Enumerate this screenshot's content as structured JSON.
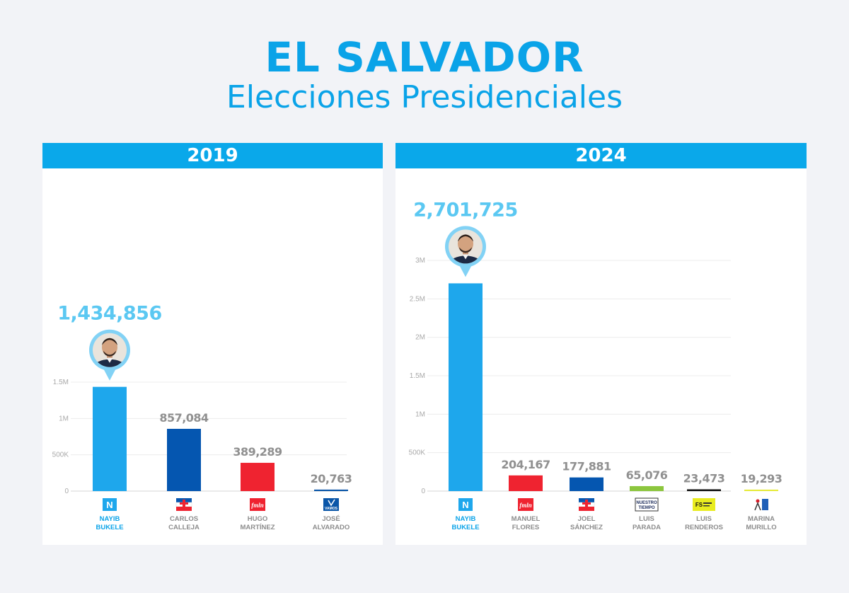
{
  "header": {
    "title": "EL SALVADOR",
    "subtitle": "Elecciones Presidenciales"
  },
  "colors": {
    "accent": "#0aa3e8",
    "header_bar": "#0aa8ea",
    "winner_label": "#5bc8f2"
  },
  "chart_data": [
    {
      "type": "bar",
      "title": "2019",
      "ylim": [
        0,
        1500000
      ],
      "yticks": [
        0,
        500000,
        1000000,
        1500000
      ],
      "ytick_labels": [
        "0",
        "500K",
        "1M",
        "1.5M"
      ],
      "grid": true,
      "categories": [
        {
          "line1": "NAYIB",
          "line2": "BUKELE",
          "winner": true,
          "logo": "N",
          "logo_icon": "nuevas-ideas-logo"
        },
        {
          "line1": "CARLOS",
          "line2": "CALLEJA",
          "winner": false,
          "logo": "",
          "logo_icon": "arena-logo"
        },
        {
          "line1": "HUGO",
          "line2": "MARTÍNEZ",
          "winner": false,
          "logo": "fmln",
          "logo_icon": "fmln-logo"
        },
        {
          "line1": "JOSÉ",
          "line2": "ALVARADO",
          "winner": false,
          "logo": "VAMOS",
          "logo_icon": "vamos-logo"
        }
      ],
      "values": [
        1434856,
        857084,
        389289,
        20763
      ],
      "value_labels": [
        "1,434,856",
        "857,084",
        "389,289",
        "20,763"
      ],
      "colors": [
        "#1ea7ec",
        "#0556b0",
        "#ef2330",
        "#0a56a8"
      ]
    },
    {
      "type": "bar",
      "title": "2024",
      "ylim": [
        0,
        3000000
      ],
      "yticks": [
        0,
        500000,
        1000000,
        1500000,
        2000000,
        2500000,
        3000000
      ],
      "ytick_labels": [
        "0",
        "500K",
        "1M",
        "1.5M",
        "2M",
        "2.5M",
        "3M"
      ],
      "grid": true,
      "categories": [
        {
          "line1": "NAYIB",
          "line2": "BUKELE",
          "winner": true,
          "logo": "N",
          "logo_icon": "nuevas-ideas-logo"
        },
        {
          "line1": "MANUEL",
          "line2": "FLORES",
          "winner": false,
          "logo": "fmln",
          "logo_icon": "fmln-logo"
        },
        {
          "line1": "JOEL",
          "line2": "SÁNCHEZ",
          "winner": false,
          "logo": "",
          "logo_icon": "arena-logo"
        },
        {
          "line1": "LUIS",
          "line2": "PARADA",
          "winner": false,
          "logo": "NUESTRO TIEMPO",
          "logo_icon": "nuestro-tiempo-logo"
        },
        {
          "line1": "LUIS",
          "line2": "RENDEROS",
          "winner": false,
          "logo": "FS",
          "logo_icon": "fuerza-solidaria-logo"
        },
        {
          "line1": "MARINA",
          "line2": "MURILLO",
          "winner": false,
          "logo": "",
          "logo_icon": "fps-logo"
        }
      ],
      "values": [
        2701725,
        204167,
        177881,
        65076,
        23473,
        19293
      ],
      "value_labels": [
        "2,701,725",
        "204,167",
        "177,881",
        "65,076",
        "23,473",
        "19,293"
      ],
      "colors": [
        "#1ea7ec",
        "#ef2330",
        "#0556b0",
        "#8cc63e",
        "#111111",
        "#e6ea3a"
      ]
    }
  ]
}
